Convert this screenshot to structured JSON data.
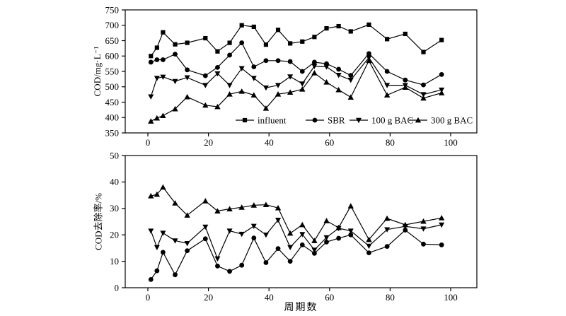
{
  "figure": {
    "background": "#ffffff",
    "ink_color": "#000000",
    "xlabel": "周期数",
    "x_ticks": [
      0,
      20,
      40,
      60,
      80,
      100
    ]
  },
  "chart_data": [
    {
      "type": "line",
      "panel": "top",
      "title": "",
      "ylabel": "COD/mg·L⁻¹",
      "xlabel": "",
      "ylim": [
        350,
        750
      ],
      "y_ticks": [
        350,
        400,
        450,
        500,
        550,
        600,
        650,
        700,
        750
      ],
      "xlim": [
        -7,
        110
      ],
      "grid": false,
      "legend_position": "inside-bottom",
      "x": [
        1,
        3,
        5,
        9,
        13,
        19,
        23,
        27,
        31,
        35,
        39,
        43,
        47,
        51,
        55,
        59,
        63,
        67,
        73,
        79,
        85,
        91,
        97
      ],
      "series": [
        {
          "name": "influent",
          "marker": "square",
          "values": [
            600,
            627,
            677,
            638,
            643,
            658,
            615,
            643,
            700,
            695,
            637,
            685,
            641,
            647,
            662,
            690,
            697,
            680,
            702,
            655,
            672,
            613,
            652
          ]
        },
        {
          "name": "SBR",
          "marker": "circle",
          "values": [
            580,
            588,
            588,
            606,
            555,
            536,
            563,
            603,
            643,
            565,
            585,
            585,
            582,
            550,
            580,
            575,
            557,
            537,
            608,
            550,
            522,
            506,
            540
          ]
        },
        {
          "name": "100 g BAC",
          "marker": "triangle-down",
          "values": [
            468,
            528,
            532,
            518,
            530,
            505,
            543,
            505,
            560,
            528,
            497,
            505,
            533,
            510,
            567,
            565,
            538,
            522,
            595,
            505,
            505,
            475,
            490
          ]
        },
        {
          "name": "300 g BAC",
          "marker": "triangle-up",
          "values": [
            388,
            398,
            406,
            428,
            467,
            440,
            435,
            476,
            485,
            473,
            430,
            476,
            482,
            492,
            545,
            515,
            490,
            466,
            585,
            473,
            498,
            463,
            480
          ]
        }
      ]
    },
    {
      "type": "line",
      "panel": "bottom",
      "title": "",
      "ylabel": "COD去除率/%",
      "xlabel": "周期数",
      "ylim": [
        0,
        50
      ],
      "y_ticks": [
        0,
        10,
        20,
        30,
        40,
        50
      ],
      "xlim": [
        -7,
        110
      ],
      "grid": false,
      "legend_position": "none",
      "x": [
        1,
        3,
        5,
        9,
        13,
        19,
        23,
        27,
        31,
        35,
        39,
        43,
        47,
        51,
        55,
        59,
        63,
        67,
        73,
        79,
        85,
        91,
        97
      ],
      "series": [
        {
          "name": "SBR",
          "marker": "circle",
          "values": [
            3.1,
            6.4,
            13.4,
            4.9,
            14,
            18.5,
            8.2,
            6.2,
            8.5,
            18.8,
            9.5,
            14.8,
            10,
            16.2,
            13,
            17.3,
            18.7,
            20,
            13.2,
            15.6,
            21.8,
            16.5,
            16.2
          ]
        },
        {
          "name": "100 g BAC",
          "marker": "triangle-down",
          "values": [
            21.5,
            15.3,
            20.7,
            17.8,
            16.8,
            23,
            11,
            21.5,
            20.3,
            23.3,
            20,
            25.6,
            15.3,
            20.2,
            14.3,
            19,
            22.5,
            21.5,
            15.8,
            22,
            23.2,
            22.3,
            23.8
          ]
        },
        {
          "name": "300 g BAC",
          "marker": "triangle-up",
          "values": [
            34.7,
            35.3,
            38,
            32,
            27.4,
            32.8,
            29,
            29.8,
            30.4,
            31.2,
            31.4,
            30.2,
            20.6,
            23.8,
            17.8,
            25.3,
            22.7,
            30.9,
            18.2,
            26.2,
            23.8,
            25.1,
            26.4
          ]
        }
      ]
    }
  ],
  "legend": {
    "items": [
      {
        "label": "influent",
        "marker": "square"
      },
      {
        "label": "SBR",
        "marker": "circle"
      },
      {
        "label": "100 g BAC",
        "marker": "triangle-down"
      },
      {
        "label": "300 g BAC",
        "marker": "triangle-up"
      }
    ]
  }
}
